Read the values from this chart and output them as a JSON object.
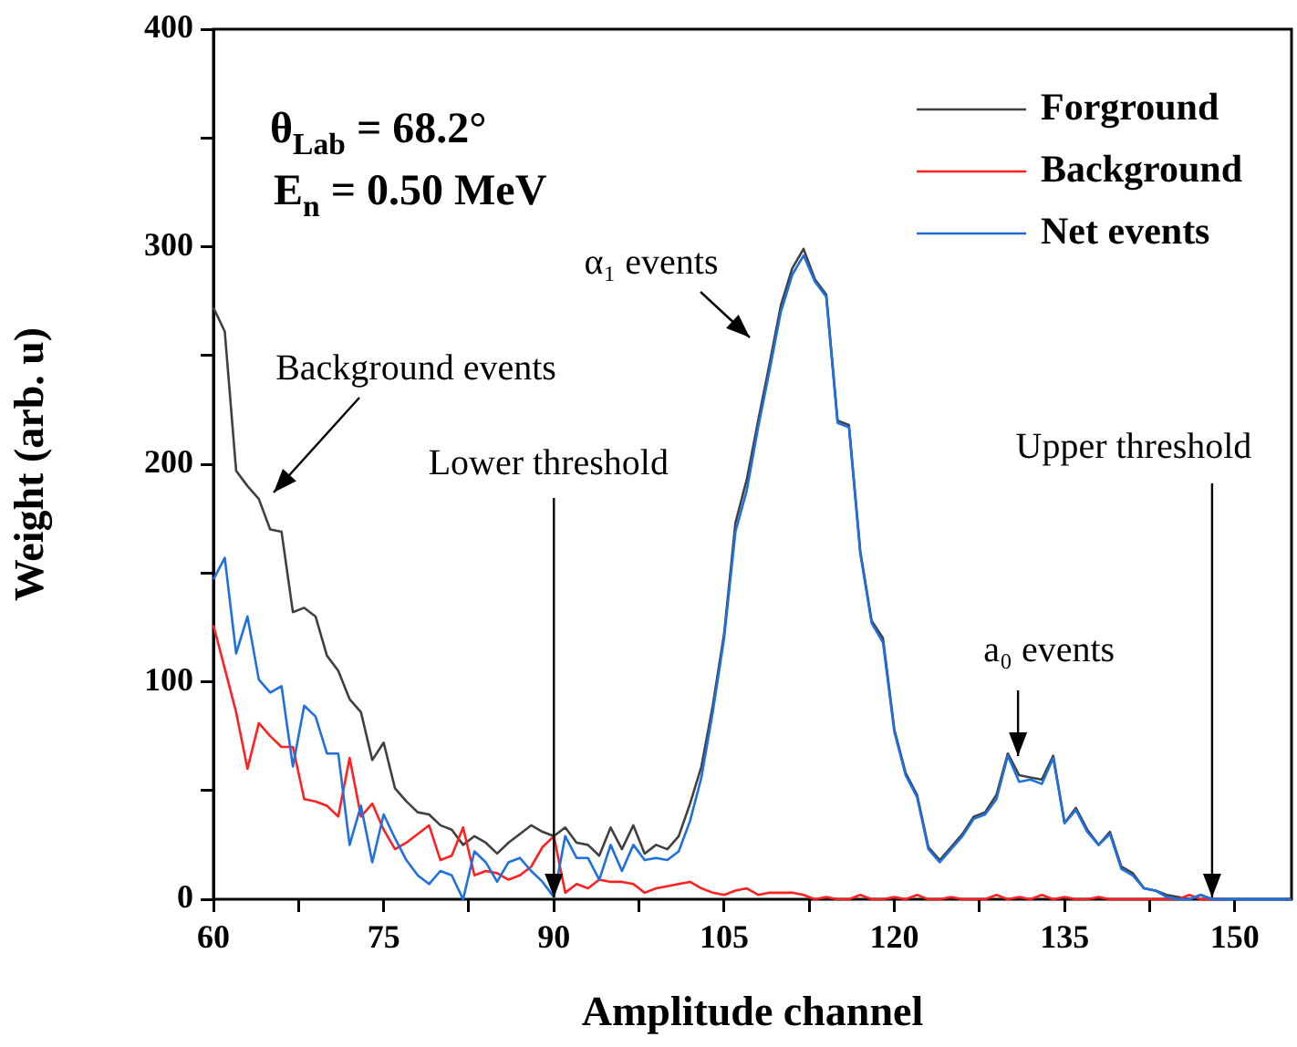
{
  "chart_data": {
    "type": "line",
    "xlabel": "Amplitude channel",
    "ylabel": "Weight (arb. u)",
    "x": [
      60,
      61,
      62,
      63,
      64,
      65,
      66,
      67,
      68,
      69,
      70,
      71,
      72,
      73,
      74,
      75,
      76,
      77,
      78,
      79,
      80,
      81,
      82,
      83,
      84,
      85,
      86,
      87,
      88,
      89,
      90,
      91,
      92,
      93,
      94,
      95,
      96,
      97,
      98,
      99,
      100,
      101,
      102,
      103,
      104,
      105,
      106,
      107,
      108,
      109,
      110,
      111,
      112,
      113,
      114,
      115,
      116,
      117,
      118,
      119,
      120,
      121,
      122,
      123,
      124,
      125,
      126,
      127,
      128,
      129,
      130,
      131,
      132,
      133,
      134,
      135,
      136,
      137,
      138,
      139,
      140,
      141,
      142,
      143,
      144,
      145,
      146,
      147,
      148,
      149,
      150,
      151,
      152,
      153,
      154,
      155
    ],
    "series": [
      {
        "name": "Forground",
        "color": "#404040",
        "values": [
          272,
          261,
          197,
          190,
          184,
          170,
          169,
          132,
          134,
          130,
          112,
          105,
          92,
          86,
          64,
          72,
          51,
          45,
          40,
          39,
          34,
          32,
          25,
          29,
          26,
          21,
          26,
          30,
          34,
          31,
          29,
          33,
          26,
          25,
          20,
          33,
          23,
          34,
          21,
          25,
          23,
          29,
          44,
          61,
          89,
          122,
          173,
          193,
          220,
          246,
          273,
          290,
          299,
          285,
          278,
          220,
          218,
          160,
          128,
          120,
          78,
          58,
          48,
          24,
          18,
          24,
          30,
          38,
          40,
          48,
          67,
          57,
          56,
          55,
          66,
          35,
          42,
          32,
          25,
          31,
          15,
          12,
          5,
          4,
          2,
          1,
          0,
          2,
          0,
          0,
          0,
          0,
          0,
          0,
          0,
          0
        ]
      },
      {
        "name": "Background",
        "color": "#ff2020",
        "values": [
          126,
          106,
          86,
          60,
          81,
          75,
          70,
          70,
          46,
          45,
          43,
          38,
          65,
          38,
          44,
          32,
          23,
          26,
          30,
          34,
          18,
          20,
          33,
          11,
          13,
          12,
          9,
          11,
          15,
          24,
          29,
          3,
          7,
          5,
          9,
          8,
          8,
          7,
          3,
          5,
          6,
          7,
          8,
          5,
          3,
          2,
          4,
          5,
          2,
          3,
          3,
          3,
          2,
          0,
          1,
          0,
          0,
          2,
          0,
          0,
          1,
          0,
          2,
          0,
          0,
          1,
          0,
          0,
          0,
          2,
          0,
          1,
          0,
          2,
          0,
          1,
          0,
          0,
          1,
          0,
          0,
          0,
          0,
          0,
          0,
          0,
          2,
          0,
          0,
          0,
          null,
          null,
          null,
          null,
          null,
          null
        ]
      },
      {
        "name": "Net events",
        "color": "#1f6fe0",
        "values": [
          147,
          157,
          113,
          130,
          101,
          95,
          98,
          61,
          89,
          84,
          67,
          67,
          25,
          43,
          17,
          39,
          28,
          18,
          11,
          7,
          13,
          11,
          0,
          22,
          17,
          8,
          17,
          19,
          13,
          8,
          1,
          29,
          19,
          19,
          9,
          25,
          13,
          25,
          18,
          19,
          18,
          22,
          36,
          56,
          86,
          120,
          169,
          188,
          217,
          243,
          270,
          287,
          296,
          284,
          277,
          219,
          217,
          159,
          127,
          118,
          77,
          57,
          47,
          23,
          17,
          23,
          29,
          37,
          39,
          46,
          66,
          54,
          55,
          53,
          65,
          35,
          41,
          31,
          25,
          30,
          14,
          11,
          5,
          4,
          1,
          0,
          0,
          2,
          0,
          0,
          0,
          0,
          0,
          0,
          0,
          0
        ]
      }
    ],
    "xlim": [
      60,
      155
    ],
    "xticks": [
      60,
      {
        "value": 67.5,
        "label": null
      },
      75,
      {
        "value": 82.5,
        "label": null
      },
      90,
      {
        "value": 97.5,
        "label": null
      },
      105,
      {
        "value": 112.5,
        "label": null
      },
      120,
      {
        "value": 127.5,
        "label": null
      },
      135,
      {
        "value": 142.5,
        "label": null
      },
      150
    ],
    "ylim": [
      0,
      400
    ],
    "yticks": [
      0,
      {
        "value": 50,
        "label": null
      },
      100,
      {
        "value": 150,
        "label": null
      },
      200,
      {
        "value": 250,
        "label": null
      },
      300,
      {
        "value": 350,
        "label": null
      },
      400
    ],
    "grid": false,
    "legend": "top right",
    "marker": "none",
    "line_style": "solid",
    "annotations": [
      "θ$_{Lab}$ = 68.2°",
      "E$_{n}$ = 0.50 MeV",
      "Background events",
      {
        "text": "Lower threshold",
        "x": 90,
        "y": 0
      },
      "α₁ events",
      {
        "text": "a₀ events",
        "x": 130.9,
        "y": 65
      },
      {
        "text": "Upper threshold",
        "x": 148,
        "y": 0
      }
    ]
  }
}
